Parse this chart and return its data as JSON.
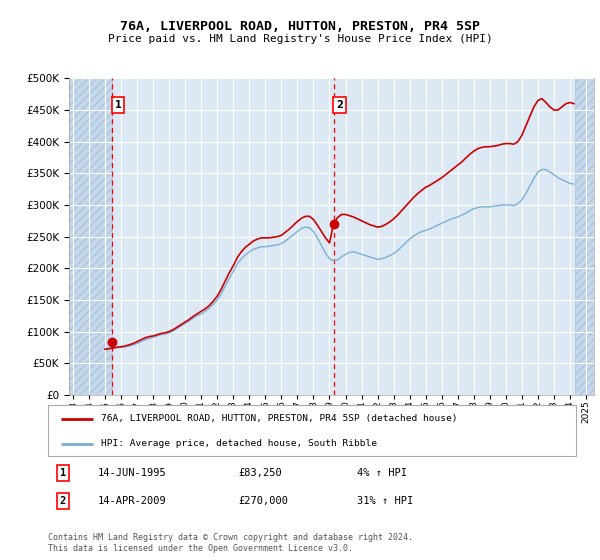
{
  "title": "76A, LIVERPOOL ROAD, HUTTON, PRESTON, PR4 5SP",
  "subtitle": "Price paid vs. HM Land Registry's House Price Index (HPI)",
  "ylim": [
    0,
    500000
  ],
  "yticks": [
    0,
    50000,
    100000,
    150000,
    200000,
    250000,
    300000,
    350000,
    400000,
    450000,
    500000
  ],
  "xlim_start": 1992.75,
  "xlim_end": 2025.5,
  "hatch_left_end": 1995.45,
  "hatch_right_start": 2024.3,
  "sale1_x": 1995.45,
  "sale1_y": 83250,
  "sale2_x": 2009.28,
  "sale2_y": 270000,
  "legend_label_red": "76A, LIVERPOOL ROAD, HUTTON, PRESTON, PR4 5SP (detached house)",
  "legend_label_blue": "HPI: Average price, detached house, South Ribble",
  "annotation1_date": "14-JUN-1995",
  "annotation1_price": "£83,250",
  "annotation1_hpi": "4% ↑ HPI",
  "annotation2_date": "14-APR-2009",
  "annotation2_price": "£270,000",
  "annotation2_hpi": "31% ↑ HPI",
  "footnote": "Contains HM Land Registry data © Crown copyright and database right 2024.\nThis data is licensed under the Open Government Licence v3.0.",
  "bg_color": "#dce9f5",
  "hatch_color": "#c5d8ec",
  "grid_color": "#ffffff",
  "red_color": "#cc0000",
  "blue_color": "#7bafd4",
  "hpi_data_x": [
    1995.0,
    1995.25,
    1995.5,
    1995.75,
    1996.0,
    1996.25,
    1996.5,
    1996.75,
    1997.0,
    1997.25,
    1997.5,
    1997.75,
    1998.0,
    1998.25,
    1998.5,
    1998.75,
    1999.0,
    1999.25,
    1999.5,
    1999.75,
    2000.0,
    2000.25,
    2000.5,
    2000.75,
    2001.0,
    2001.25,
    2001.5,
    2001.75,
    2002.0,
    2002.25,
    2002.5,
    2002.75,
    2003.0,
    2003.25,
    2003.5,
    2003.75,
    2004.0,
    2004.25,
    2004.5,
    2004.75,
    2005.0,
    2005.25,
    2005.5,
    2005.75,
    2006.0,
    2006.25,
    2006.5,
    2006.75,
    2007.0,
    2007.25,
    2007.5,
    2007.75,
    2008.0,
    2008.25,
    2008.5,
    2008.75,
    2009.0,
    2009.25,
    2009.5,
    2009.75,
    2010.0,
    2010.25,
    2010.5,
    2010.75,
    2011.0,
    2011.25,
    2011.5,
    2011.75,
    2012.0,
    2012.25,
    2012.5,
    2012.75,
    2013.0,
    2013.25,
    2013.5,
    2013.75,
    2014.0,
    2014.25,
    2014.5,
    2014.75,
    2015.0,
    2015.25,
    2015.5,
    2015.75,
    2016.0,
    2016.25,
    2016.5,
    2016.75,
    2017.0,
    2017.25,
    2017.5,
    2017.75,
    2018.0,
    2018.25,
    2018.5,
    2018.75,
    2019.0,
    2019.25,
    2019.5,
    2019.75,
    2020.0,
    2020.25,
    2020.5,
    2020.75,
    2021.0,
    2021.25,
    2021.5,
    2021.75,
    2022.0,
    2022.25,
    2022.5,
    2022.75,
    2023.0,
    2023.25,
    2023.5,
    2023.75,
    2024.0,
    2024.25
  ],
  "hpi_data_y": [
    72000,
    73000,
    74000,
    75000,
    75000,
    76000,
    77000,
    79000,
    81000,
    84000,
    87000,
    89000,
    91000,
    93000,
    95000,
    96000,
    98000,
    101000,
    105000,
    109000,
    113000,
    117000,
    121000,
    125000,
    128000,
    132000,
    137000,
    143000,
    150000,
    160000,
    172000,
    184000,
    195000,
    207000,
    215000,
    221000,
    226000,
    230000,
    232000,
    234000,
    234000,
    235000,
    236000,
    237000,
    239000,
    243000,
    248000,
    253000,
    258000,
    263000,
    265000,
    264000,
    258000,
    248000,
    236000,
    224000,
    215000,
    212000,
    213000,
    218000,
    222000,
    225000,
    226000,
    224000,
    222000,
    220000,
    218000,
    216000,
    214000,
    215000,
    217000,
    220000,
    223000,
    228000,
    234000,
    240000,
    246000,
    251000,
    255000,
    258000,
    260000,
    262000,
    265000,
    268000,
    271000,
    274000,
    277000,
    279000,
    281000,
    284000,
    287000,
    291000,
    294000,
    296000,
    297000,
    297000,
    297000,
    298000,
    299000,
    300000,
    300000,
    300000,
    299000,
    302000,
    308000,
    318000,
    330000,
    342000,
    352000,
    356000,
    356000,
    352000,
    348000,
    343000,
    340000,
    337000,
    334000,
    333000
  ],
  "price_data_x": [
    1995.0,
    1995.25,
    1995.5,
    1995.75,
    1996.0,
    1996.25,
    1996.5,
    1996.75,
    1997.0,
    1997.25,
    1997.5,
    1997.75,
    1998.0,
    1998.25,
    1998.5,
    1998.75,
    1999.0,
    1999.25,
    1999.5,
    1999.75,
    2000.0,
    2000.25,
    2000.5,
    2000.75,
    2001.0,
    2001.25,
    2001.5,
    2001.75,
    2002.0,
    2002.25,
    2002.5,
    2002.75,
    2003.0,
    2003.25,
    2003.5,
    2003.75,
    2004.0,
    2004.25,
    2004.5,
    2004.75,
    2005.0,
    2005.25,
    2005.5,
    2005.75,
    2006.0,
    2006.25,
    2006.5,
    2006.75,
    2007.0,
    2007.25,
    2007.5,
    2007.75,
    2008.0,
    2008.25,
    2008.5,
    2008.75,
    2009.0,
    2009.25,
    2009.5,
    2009.75,
    2010.0,
    2010.25,
    2010.5,
    2010.75,
    2011.0,
    2011.25,
    2011.5,
    2011.75,
    2012.0,
    2012.25,
    2012.5,
    2012.75,
    2013.0,
    2013.25,
    2013.5,
    2013.75,
    2014.0,
    2014.25,
    2014.5,
    2014.75,
    2015.0,
    2015.25,
    2015.5,
    2015.75,
    2016.0,
    2016.25,
    2016.5,
    2016.75,
    2017.0,
    2017.25,
    2017.5,
    2017.75,
    2018.0,
    2018.25,
    2018.5,
    2018.75,
    2019.0,
    2019.25,
    2019.5,
    2019.75,
    2020.0,
    2020.25,
    2020.5,
    2020.75,
    2021.0,
    2021.25,
    2021.5,
    2021.75,
    2022.0,
    2022.25,
    2022.5,
    2022.75,
    2023.0,
    2023.25,
    2023.5,
    2023.75,
    2024.0,
    2024.25
  ],
  "price_data_y": [
    72000,
    73000,
    74000,
    75000,
    76000,
    77000,
    79000,
    81000,
    84000,
    87000,
    90000,
    92000,
    93000,
    95000,
    97000,
    98000,
    100000,
    103000,
    107000,
    111000,
    115000,
    119000,
    124000,
    128000,
    132000,
    136000,
    141000,
    148000,
    156000,
    167000,
    180000,
    193000,
    204000,
    217000,
    226000,
    233000,
    238000,
    243000,
    246000,
    248000,
    248000,
    248000,
    249000,
    250000,
    252000,
    257000,
    262000,
    268000,
    274000,
    279000,
    282000,
    282000,
    277000,
    268000,
    258000,
    248000,
    240000,
    270000,
    280000,
    285000,
    285000,
    283000,
    281000,
    278000,
    275000,
    272000,
    269000,
    267000,
    265000,
    266000,
    269000,
    273000,
    278000,
    284000,
    291000,
    298000,
    305000,
    312000,
    318000,
    323000,
    328000,
    331000,
    335000,
    339000,
    343000,
    348000,
    353000,
    358000,
    363000,
    368000,
    374000,
    380000,
    385000,
    389000,
    391000,
    392000,
    392000,
    393000,
    394000,
    396000,
    397000,
    397000,
    396000,
    400000,
    410000,
    425000,
    440000,
    455000,
    465000,
    468000,
    462000,
    455000,
    450000,
    450000,
    455000,
    460000,
    462000,
    460000
  ]
}
